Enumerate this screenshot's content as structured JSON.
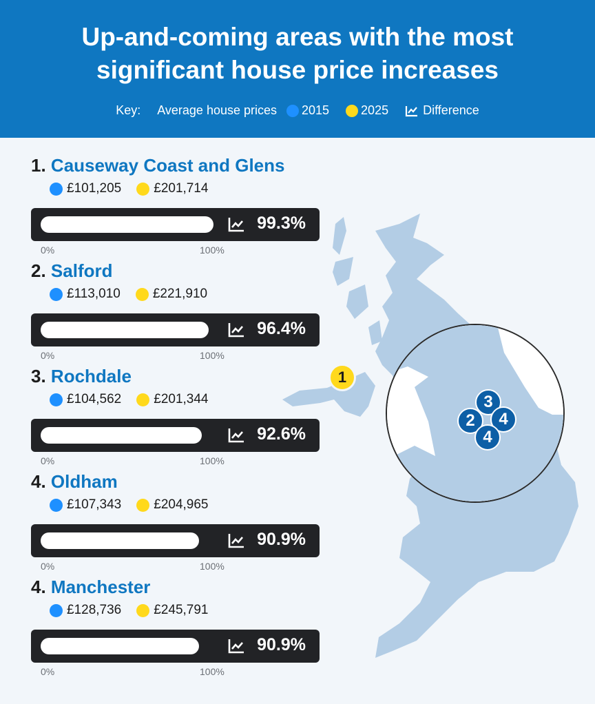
{
  "header": {
    "title_line1": "Up-and-coming areas with the most",
    "title_line2": "significant house price increases",
    "key_label": "Key:",
    "key_measure": "Average house prices",
    "key_2015": "2015",
    "key_2025": "2025",
    "key_difference": "Difference",
    "icon": "trend-chart-icon"
  },
  "colors": {
    "header_bg": "#0f77c1",
    "year_2015": "#1e90ff",
    "year_2025": "#ffd91c",
    "name_text": "#0f77c1",
    "bar_bg": "#222326",
    "map": "#b3cde5"
  },
  "axis": {
    "min_label": "0%",
    "max_label": "100%"
  },
  "chart_data": {
    "type": "bar",
    "title": "Up-and-coming areas with the most significant house price increases",
    "xlim": [
      0,
      100
    ],
    "series": [
      {
        "name": "2015",
        "values": [
          101205,
          113010,
          104562,
          107343,
          128736
        ]
      },
      {
        "name": "2025",
        "values": [
          201714,
          221910,
          201344,
          204965,
          245791
        ]
      },
      {
        "name": "Difference",
        "values": [
          99.3,
          96.4,
          92.6,
          90.9,
          90.9
        ]
      }
    ],
    "categories": [
      "Causeway Coast and Glens",
      "Salford",
      "Rochdale",
      "Oldham",
      "Manchester"
    ],
    "items": [
      {
        "rank": "1.",
        "name": "Causeway Coast and Glens",
        "price_2015": "£101,205",
        "price_2025": "£201,714",
        "difference": 99.3,
        "difference_label": "99.3%"
      },
      {
        "rank": "2.",
        "name": "Salford",
        "price_2015": "£113,010",
        "price_2025": "£221,910",
        "difference": 96.4,
        "difference_label": "96.4%"
      },
      {
        "rank": "3.",
        "name": "Rochdale",
        "price_2015": "£104,562",
        "price_2025": "£201,344",
        "difference": 92.6,
        "difference_label": "92.6%"
      },
      {
        "rank": "4.",
        "name": "Oldham",
        "price_2015": "£107,343",
        "price_2025": "£204,965",
        "difference": 90.9,
        "difference_label": "90.9%"
      },
      {
        "rank": "4.",
        "name": "Manchester",
        "price_2015": "£128,736",
        "price_2025": "£245,791",
        "difference": 90.9,
        "difference_label": "90.9%"
      }
    ]
  },
  "map": {
    "marker_main": "1",
    "zoom_pins": [
      "3",
      "2",
      "4",
      "4"
    ]
  }
}
